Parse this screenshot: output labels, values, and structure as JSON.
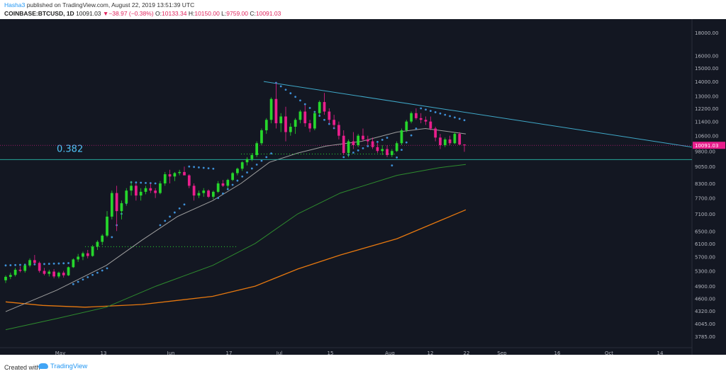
{
  "header": {
    "author": "Hasha3",
    "published_text": "published on TradingView.com, August 22, 2019 13:51:39 UTC",
    "symbol": "COINBASE:BTCUSD, 1D",
    "last": "10091.03",
    "change_arrow": "▼",
    "change": "−38.97 (−0.38%)",
    "open_label": "O:",
    "open": "10133.34",
    "high_label": "H:",
    "high": "10150.00",
    "low_label": "L:",
    "low": "9759.00",
    "close_label": "C:",
    "close": "10091.03"
  },
  "footer": {
    "created_with": "Created with",
    "brand": "TradingView"
  },
  "chart_data": {
    "type": "candlestick",
    "yscale": "log",
    "ylim": [
      3600,
      19000
    ],
    "y_ticks": [
      "18000.00",
      "16000.00",
      "15000.00",
      "14000.00",
      "13000.00",
      "12200.00",
      "11400.00",
      "10600.00",
      "9800.00",
      "9050.00",
      "8300.00",
      "7700.00",
      "7100.00",
      "6500.00",
      "6100.00",
      "5700.00",
      "5300.00",
      "4900.00",
      "4600.00",
      "4320.00",
      "4045.00",
      "3785.00"
    ],
    "x_ticks": [
      "May",
      "13",
      "Jun",
      "17",
      "Jul",
      "15",
      "Aug",
      "12",
      "22",
      "Sep",
      "16",
      "Oct",
      "14"
    ],
    "annotation_fib": "0.382",
    "price_label": "10091.03",
    "fib_level": 9380,
    "price_line": 10091.03,
    "colors": {
      "up": "#26d62c",
      "down": "#e91e8c",
      "sar": "#3d8fd6",
      "fib": "#26a69a",
      "trend": "#3fa8c8",
      "ma20": "#9e9e9e",
      "ma100": "#2e8b2e",
      "ma200": "#e6780f"
    },
    "candles": [
      [
        5050,
        5180,
        4980,
        5140
      ],
      [
        5140,
        5250,
        5080,
        5190
      ],
      [
        5190,
        5380,
        5150,
        5330
      ],
      [
        5330,
        5420,
        5260,
        5300
      ],
      [
        5300,
        5480,
        5250,
        5450
      ],
      [
        5450,
        5650,
        5400,
        5600
      ],
      [
        5600,
        5750,
        5480,
        5520
      ],
      [
        5520,
        5560,
        5250,
        5300
      ],
      [
        5300,
        5380,
        5180,
        5220
      ],
      [
        5220,
        5330,
        5150,
        5280
      ],
      [
        5280,
        5350,
        5100,
        5150
      ],
      [
        5150,
        5280,
        5100,
        5250
      ],
      [
        5250,
        5300,
        5120,
        5180
      ],
      [
        5180,
        5420,
        5160,
        5400
      ],
      [
        5400,
        5650,
        5380,
        5620
      ],
      [
        5620,
        5780,
        5550,
        5700
      ],
      [
        5700,
        5850,
        5600,
        5800
      ],
      [
        5800,
        5900,
        5650,
        5720
      ],
      [
        5720,
        6050,
        5700,
        6000
      ],
      [
        6000,
        6200,
        5900,
        6150
      ],
      [
        6150,
        6400,
        6050,
        6350
      ],
      [
        6350,
        7200,
        6300,
        7000
      ],
      [
        7000,
        8000,
        6900,
        7900
      ],
      [
        7900,
        8200,
        6500,
        7200
      ],
      [
        7200,
        7600,
        6900,
        7500
      ],
      [
        7500,
        8100,
        7400,
        8000
      ],
      [
        8000,
        8400,
        7800,
        8200
      ],
      [
        8200,
        8300,
        7600,
        7800
      ],
      [
        7800,
        8100,
        7600,
        7950
      ],
      [
        7950,
        8200,
        7850,
        8100
      ],
      [
        8100,
        8300,
        7900,
        8000
      ],
      [
        8000,
        8100,
        7700,
        7900
      ],
      [
        7900,
        8400,
        7850,
        8300
      ],
      [
        8300,
        8800,
        8200,
        8700
      ],
      [
        8700,
        8900,
        8300,
        8600
      ],
      [
        8600,
        8800,
        8400,
        8750
      ],
      [
        8750,
        8900,
        8650,
        8800
      ],
      [
        8800,
        9050,
        8700,
        8650
      ],
      [
        8650,
        8700,
        8100,
        8200
      ],
      [
        8200,
        8300,
        7600,
        7800
      ],
      [
        7800,
        8000,
        7700,
        7900
      ],
      [
        7900,
        8100,
        7750,
        8000
      ],
      [
        8000,
        8050,
        7700,
        7750
      ],
      [
        7750,
        8000,
        7650,
        7950
      ],
      [
        7950,
        8400,
        7900,
        8300
      ],
      [
        8300,
        8450,
        8150,
        8200
      ],
      [
        8200,
        8500,
        8100,
        8450
      ],
      [
        8450,
        8800,
        8400,
        8750
      ],
      [
        8750,
        9000,
        8650,
        8950
      ],
      [
        8950,
        9300,
        8850,
        9250
      ],
      [
        9250,
        9500,
        9100,
        9400
      ],
      [
        9400,
        9700,
        9300,
        9600
      ],
      [
        9600,
        10300,
        9500,
        10200
      ],
      [
        10200,
        11000,
        10100,
        10900
      ],
      [
        10900,
        11600,
        10700,
        11500
      ],
      [
        11500,
        12900,
        11300,
        12800
      ],
      [
        12800,
        13900,
        11000,
        11300
      ],
      [
        11300,
        11900,
        10800,
        11700
      ],
      [
        11700,
        12300,
        10300,
        10800
      ],
      [
        10800,
        11300,
        10600,
        11100
      ],
      [
        11100,
        11600,
        10700,
        11500
      ],
      [
        11500,
        12100,
        11300,
        12000
      ],
      [
        12000,
        12400,
        11100,
        11300
      ],
      [
        11300,
        11500,
        10800,
        11000
      ],
      [
        11000,
        12000,
        10900,
        11900
      ],
      [
        11900,
        12700,
        11800,
        12600
      ],
      [
        12600,
        13200,
        11800,
        12000
      ],
      [
        12000,
        12200,
        11300,
        11500
      ],
      [
        11500,
        11800,
        11000,
        11200
      ],
      [
        11200,
        11400,
        10400,
        10600
      ],
      [
        10600,
        10900,
        9600,
        9700
      ],
      [
        9700,
        10400,
        9500,
        10300
      ],
      [
        10300,
        10800,
        9900,
        10100
      ],
      [
        10100,
        10700,
        10000,
        10600
      ],
      [
        10600,
        11000,
        10300,
        10400
      ],
      [
        10400,
        10600,
        10100,
        10300
      ],
      [
        10300,
        10500,
        9900,
        10000
      ],
      [
        10000,
        10200,
        9700,
        9800
      ],
      [
        9800,
        10100,
        9600,
        9900
      ],
      [
        9900,
        10100,
        9500,
        9600
      ],
      [
        9600,
        9900,
        9500,
        9800
      ],
      [
        9800,
        10300,
        9750,
        10200
      ],
      [
        10200,
        11000,
        10100,
        10900
      ],
      [
        10900,
        11500,
        10800,
        11400
      ],
      [
        11400,
        12000,
        11300,
        11900
      ],
      [
        11900,
        12200,
        11500,
        11600
      ],
      [
        11600,
        11900,
        11300,
        11500
      ],
      [
        11500,
        11700,
        11200,
        11400
      ],
      [
        11400,
        11700,
        10900,
        11000
      ],
      [
        11000,
        11100,
        10300,
        10500
      ],
      [
        10500,
        10700,
        9900,
        10100
      ],
      [
        10100,
        10500,
        10000,
        10400
      ],
      [
        10400,
        10600,
        10100,
        10200
      ],
      [
        10200,
        10800,
        10150,
        10700
      ],
      [
        10700,
        10800,
        10100,
        10130
      ],
      [
        10133,
        10150,
        9759,
        10091
      ]
    ]
  }
}
